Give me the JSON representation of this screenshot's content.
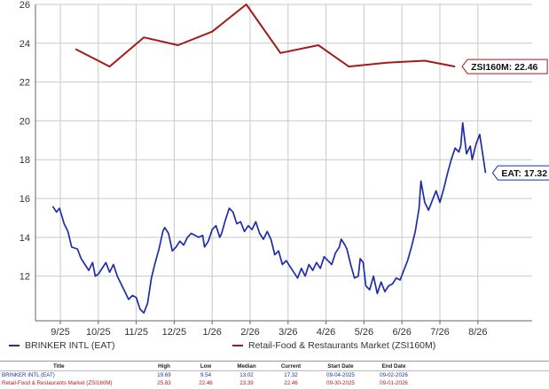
{
  "chart_data": {
    "type": "line",
    "title": "",
    "xlabel": "",
    "ylabel": "",
    "ylim": [
      9.7,
      26
    ],
    "y_ticks": [
      12,
      14,
      16,
      18,
      20,
      22,
      24,
      26
    ],
    "x_ticks": [
      "9/25",
      "10/25",
      "11/25",
      "12/25",
      "1/26",
      "2/26",
      "3/26",
      "4/26",
      "5/26",
      "6/26",
      "7/26",
      "8/26"
    ],
    "grid": true,
    "legend_position": "bottom",
    "colors": {
      "eat": "#1f2ea8",
      "zsi": "#a5191a"
    },
    "series": [
      {
        "name": "BRINKER INTL (EAT)",
        "end_label": "EAT: 17.32",
        "color": "#1f2ea8",
        "points": [
          [
            -0.2,
            15.6
          ],
          [
            -0.1,
            15.3
          ],
          [
            -0.02,
            15.5
          ],
          [
            0.1,
            14.7
          ],
          [
            0.2,
            14.3
          ],
          [
            0.3,
            13.5
          ],
          [
            0.45,
            13.4
          ],
          [
            0.55,
            12.9
          ],
          [
            0.65,
            12.6
          ],
          [
            0.75,
            12.3
          ],
          [
            0.85,
            12.7
          ],
          [
            0.92,
            12.0
          ],
          [
            1.0,
            12.1
          ],
          [
            1.1,
            12.4
          ],
          [
            1.2,
            12.7
          ],
          [
            1.3,
            12.2
          ],
          [
            1.4,
            12.6
          ],
          [
            1.5,
            12.0
          ],
          [
            1.6,
            11.6
          ],
          [
            1.7,
            11.2
          ],
          [
            1.8,
            10.8
          ],
          [
            1.9,
            11.0
          ],
          [
            2.0,
            10.9
          ],
          [
            2.1,
            10.3
          ],
          [
            2.2,
            10.1
          ],
          [
            2.3,
            10.6
          ],
          [
            2.4,
            11.9
          ],
          [
            2.5,
            12.7
          ],
          [
            2.6,
            13.4
          ],
          [
            2.7,
            14.3
          ],
          [
            2.75,
            14.5
          ],
          [
            2.85,
            14.2
          ],
          [
            2.95,
            13.3
          ],
          [
            3.05,
            13.5
          ],
          [
            3.15,
            13.8
          ],
          [
            3.25,
            13.6
          ],
          [
            3.35,
            14.0
          ],
          [
            3.45,
            14.2
          ],
          [
            3.55,
            14.1
          ],
          [
            3.65,
            14.0
          ],
          [
            3.75,
            14.1
          ],
          [
            3.8,
            13.5
          ],
          [
            3.9,
            13.8
          ],
          [
            4.0,
            14.4
          ],
          [
            4.1,
            14.6
          ],
          [
            4.2,
            14.0
          ],
          [
            4.25,
            14.2
          ],
          [
            4.35,
            14.9
          ],
          [
            4.45,
            15.5
          ],
          [
            4.55,
            15.3
          ],
          [
            4.65,
            14.7
          ],
          [
            4.75,
            14.8
          ],
          [
            4.85,
            14.3
          ],
          [
            4.95,
            14.6
          ],
          [
            5.05,
            14.4
          ],
          [
            5.15,
            14.8
          ],
          [
            5.25,
            14.2
          ],
          [
            5.35,
            13.9
          ],
          [
            5.45,
            14.3
          ],
          [
            5.55,
            13.9
          ],
          [
            5.65,
            13.1
          ],
          [
            5.75,
            13.3
          ],
          [
            5.85,
            12.6
          ],
          [
            5.95,
            12.8
          ],
          [
            6.05,
            12.5
          ],
          [
            6.15,
            12.2
          ],
          [
            6.25,
            11.9
          ],
          [
            6.35,
            12.4
          ],
          [
            6.45,
            12.0
          ],
          [
            6.55,
            12.6
          ],
          [
            6.65,
            12.3
          ],
          [
            6.75,
            12.7
          ],
          [
            6.85,
            12.4
          ],
          [
            6.95,
            13.0
          ],
          [
            7.05,
            12.8
          ],
          [
            7.15,
            12.6
          ],
          [
            7.25,
            13.2
          ],
          [
            7.35,
            13.5
          ],
          [
            7.4,
            13.9
          ],
          [
            7.5,
            13.6
          ],
          [
            7.55,
            13.4
          ],
          [
            7.65,
            12.6
          ],
          [
            7.75,
            11.9
          ],
          [
            7.85,
            12.0
          ],
          [
            7.9,
            12.9
          ],
          [
            7.98,
            12.7
          ],
          [
            8.05,
            11.5
          ],
          [
            8.15,
            11.3
          ],
          [
            8.25,
            12.0
          ],
          [
            8.35,
            11.1
          ],
          [
            8.45,
            11.7
          ],
          [
            8.55,
            11.2
          ],
          [
            8.65,
            11.5
          ],
          [
            8.75,
            11.6
          ],
          [
            8.85,
            11.9
          ],
          [
            8.95,
            11.8
          ],
          [
            9.05,
            12.3
          ],
          [
            9.15,
            12.8
          ],
          [
            9.25,
            13.5
          ],
          [
            9.35,
            14.3
          ],
          [
            9.45,
            15.5
          ],
          [
            9.5,
            16.9
          ],
          [
            9.6,
            15.8
          ],
          [
            9.7,
            15.4
          ],
          [
            9.8,
            15.9
          ],
          [
            9.9,
            16.4
          ],
          [
            10.0,
            15.8
          ],
          [
            10.1,
            16.5
          ],
          [
            10.2,
            17.3
          ],
          [
            10.3,
            18.0
          ],
          [
            10.4,
            18.6
          ],
          [
            10.5,
            18.4
          ],
          [
            10.55,
            18.7
          ],
          [
            10.6,
            19.9
          ],
          [
            10.7,
            18.3
          ],
          [
            10.8,
            18.7
          ],
          [
            10.85,
            18.0
          ],
          [
            10.95,
            18.8
          ],
          [
            11.05,
            19.3
          ],
          [
            11.15,
            18.0
          ],
          [
            11.2,
            17.32
          ]
        ]
      },
      {
        "name": "Retail-Food & Restaurants Market (ZSI160M)",
        "end_label": "ZSI160M: 22.46",
        "color": "#a5191a",
        "points": [
          [
            0.4,
            23.7
          ],
          [
            1.3,
            22.8
          ],
          [
            2.2,
            24.3
          ],
          [
            3.1,
            23.9
          ],
          [
            4.0,
            24.6
          ],
          [
            4.9,
            26.0
          ],
          [
            5.8,
            23.5
          ],
          [
            6.8,
            23.9
          ],
          [
            7.6,
            22.8
          ],
          [
            8.6,
            23.0
          ],
          [
            9.6,
            23.1
          ],
          [
            10.4,
            22.8
          ]
        ]
      }
    ]
  },
  "legend": {
    "eat_label": "BRINKER INTL (EAT)",
    "zsi_label": "Retail-Food & Restaurants Market (ZSI160M)"
  },
  "stats": {
    "headers": {
      "title": "Title",
      "high": "High",
      "low": "Low",
      "median": "Median",
      "current": "Current",
      "start": "Start Date",
      "end": "End Date"
    },
    "eat": {
      "title": "BRINKER INTL (EAT)",
      "high": "19.69",
      "low": "9.54",
      "median": "13.02",
      "current": "17.32",
      "start": "09-04-2025",
      "end": "09-02-2026"
    },
    "zsi": {
      "title": "Retail-Food & Restaurants Market (ZSI160M)",
      "high": "25.83",
      "low": "22.46",
      "median": "23.39",
      "current": "22.46",
      "start": "09-30-2025",
      "end": "09-01-2026"
    }
  }
}
